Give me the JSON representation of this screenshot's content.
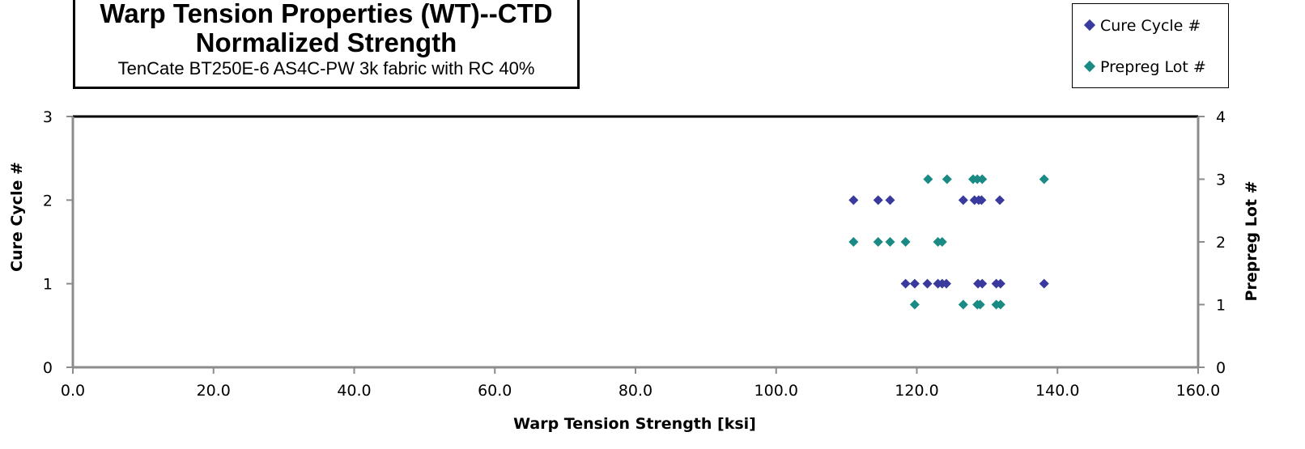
{
  "chart_data": {
    "type": "scatter",
    "title": "Warp Tension Properties (WT)--CTD",
    "title_line2": "Normalized Strength",
    "subtitle": "TenCate  BT250E-6 AS4C-PW 3k fabric with  RC 40%",
    "xlabel": "Warp Tension Strength [ksi]",
    "ylabel_left": "Cure Cycle #",
    "ylabel_right": "Prepreg Lot #",
    "xlim": [
      0,
      160
    ],
    "ylim_left": [
      0,
      3
    ],
    "ylim_right": [
      0,
      4
    ],
    "x_ticks": [
      "0.0",
      "20.0",
      "40.0",
      "60.0",
      "80.0",
      "100.0",
      "120.0",
      "140.0",
      "160.0"
    ],
    "y_left_ticks": [
      "0",
      "1",
      "2",
      "3"
    ],
    "y_right_ticks": [
      "0",
      "1",
      "2",
      "3",
      "4"
    ],
    "legend_position": "top-right",
    "grid": false,
    "series": [
      {
        "name": "Cure Cycle #",
        "axis": "left",
        "color": "#3a3a9e",
        "points": [
          [
            111.0,
            2
          ],
          [
            114.5,
            2
          ],
          [
            116.2,
            2
          ],
          [
            126.6,
            2
          ],
          [
            128.2,
            2
          ],
          [
            128.8,
            2
          ],
          [
            129.2,
            2
          ],
          [
            131.8,
            2
          ],
          [
            118.4,
            1
          ],
          [
            119.7,
            1
          ],
          [
            121.5,
            1
          ],
          [
            123.0,
            1
          ],
          [
            123.6,
            1
          ],
          [
            124.2,
            1
          ],
          [
            128.7,
            1
          ],
          [
            129.3,
            1
          ],
          [
            131.3,
            1
          ],
          [
            131.9,
            1
          ],
          [
            138.1,
            1
          ]
        ]
      },
      {
        "name": "Prepreg Lot #",
        "axis": "right",
        "color": "#1a8a84",
        "points": [
          [
            121.6,
            3
          ],
          [
            124.3,
            3
          ],
          [
            128.0,
            3
          ],
          [
            128.6,
            3
          ],
          [
            129.3,
            3
          ],
          [
            138.1,
            3
          ],
          [
            111.0,
            2
          ],
          [
            114.5,
            2
          ],
          [
            116.2,
            2
          ],
          [
            118.4,
            2
          ],
          [
            123.0,
            2
          ],
          [
            123.6,
            2
          ],
          [
            119.7,
            1
          ],
          [
            126.6,
            1
          ],
          [
            128.6,
            1
          ],
          [
            129.0,
            1
          ],
          [
            131.3,
            1
          ],
          [
            131.9,
            1
          ]
        ]
      }
    ]
  }
}
